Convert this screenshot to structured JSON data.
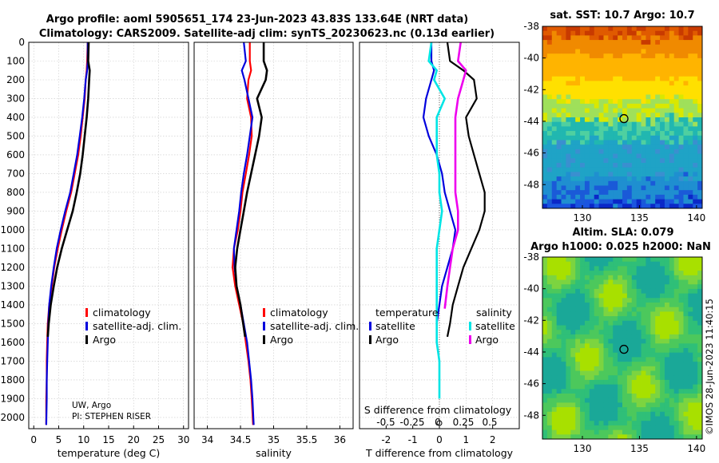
{
  "title": {
    "line1": "Argo profile: aoml 5905651_174 23-Jun-2023 43.83S 133.64E (NRT data)",
    "line2": "Climatology: CARS2009. Satellite-adj clim: synTS_20230623.nc (0.13d earlier)"
  },
  "credit": {
    "line1": "UW, Argo",
    "line2": "PI: STEPHEN RISER"
  },
  "watermark": "©IMOS 28-Jun-2023 11:40:15",
  "colors": {
    "climatology": "#ff0000",
    "satellite": "#0000dd",
    "argo": "#000000",
    "t_satellite": "#0000dd",
    "s_satellite": "#00e5e5",
    "s_argo": "#ee00ee",
    "map_marker": "#000000"
  },
  "chart_data": [
    {
      "type": "line",
      "id": "temperature",
      "xlabel": "temperature (deg C)",
      "ylabel": "",
      "xlim": [
        -1,
        31
      ],
      "ylim": [
        2060,
        0
      ],
      "xticks": [
        "0",
        "5",
        "10",
        "15",
        "20",
        "25",
        "30"
      ],
      "yticks": [
        "0",
        "100",
        "200",
        "300",
        "400",
        "500",
        "600",
        "700",
        "800",
        "900",
        "1000",
        "1100",
        "1200",
        "1300",
        "1400",
        "1500",
        "1600",
        "1700",
        "1800",
        "1900",
        "2000"
      ],
      "grid": true,
      "legend": [
        "climatology",
        "satellite-adj. clim.",
        "Argo"
      ],
      "legend_position": "lower-right",
      "series": [
        {
          "name": "climatology",
          "color": "#ff0000",
          "x": [
            10.8,
            10.7,
            10.6,
            10.4,
            10.2,
            9.8,
            9.4,
            8.9,
            8.2,
            7.5,
            6.5,
            5.6,
            4.8,
            4.1,
            3.6,
            3.1,
            2.8,
            2.7,
            2.6,
            2.6,
            2.5,
            2.5
          ],
          "y": [
            0,
            100,
            150,
            200,
            300,
            400,
            500,
            600,
            700,
            800,
            900,
            1000,
            1100,
            1200,
            1300,
            1400,
            1500,
            1600,
            1700,
            1800,
            1900,
            2040
          ]
        },
        {
          "name": "satellite-adj. clim.",
          "color": "#0000dd",
          "x": [
            10.8,
            10.8,
            10.7,
            10.4,
            10.1,
            9.7,
            9.2,
            8.7,
            8.0,
            7.3,
            6.3,
            5.4,
            4.6,
            4.0,
            3.5,
            3.1,
            2.9,
            2.8,
            2.7,
            2.6,
            2.6,
            2.5
          ],
          "y": [
            0,
            100,
            150,
            200,
            300,
            400,
            500,
            600,
            700,
            800,
            900,
            1000,
            1100,
            1200,
            1300,
            1400,
            1500,
            1600,
            1700,
            1800,
            1900,
            2040
          ]
        },
        {
          "name": "Argo",
          "color": "#000000",
          "x": [
            11.0,
            10.9,
            11.2,
            11.1,
            10.9,
            10.6,
            10.2,
            9.8,
            9.3,
            8.6,
            7.8,
            6.7,
            5.6,
            4.7,
            4.0,
            3.4,
            3.0,
            2.8
          ],
          "y": [
            0,
            100,
            150,
            200,
            300,
            400,
            500,
            600,
            700,
            800,
            900,
            1000,
            1100,
            1200,
            1300,
            1400,
            1500,
            1570
          ]
        }
      ]
    },
    {
      "type": "line",
      "id": "salinity",
      "xlabel": "salinity",
      "xlim": [
        33.8,
        36.2
      ],
      "ylim": [
        2060,
        0
      ],
      "xticks": [
        "34",
        "34.5",
        "35",
        "35.5",
        "36"
      ],
      "grid": true,
      "legend": [
        "climatology",
        "satellite-adj. clim.",
        "Argo"
      ],
      "legend_position": "lower-right",
      "series": [
        {
          "name": "climatology",
          "color": "#ff0000",
          "x": [
            34.64,
            34.64,
            34.66,
            34.62,
            34.6,
            34.66,
            34.67,
            34.63,
            34.58,
            34.53,
            34.5,
            34.46,
            34.4,
            34.38,
            34.42,
            34.48,
            34.54,
            34.58,
            34.62,
            34.65,
            34.67,
            34.69
          ],
          "y": [
            0,
            100,
            150,
            200,
            300,
            400,
            500,
            600,
            700,
            800,
            900,
            1000,
            1100,
            1200,
            1300,
            1400,
            1500,
            1600,
            1700,
            1800,
            1900,
            2040
          ]
        },
        {
          "name": "satellite-adj. clim.",
          "color": "#0000dd",
          "x": [
            34.55,
            34.58,
            34.52,
            34.56,
            34.62,
            34.68,
            34.64,
            34.6,
            34.55,
            34.51,
            34.48,
            34.44,
            34.4,
            34.41,
            34.44,
            34.5,
            34.55,
            34.6,
            34.63,
            34.66,
            34.68,
            34.7
          ],
          "y": [
            0,
            100,
            150,
            200,
            300,
            400,
            500,
            600,
            700,
            800,
            900,
            1000,
            1100,
            1200,
            1300,
            1400,
            1500,
            1600,
            1700,
            1800,
            1900,
            2040
          ]
        },
        {
          "name": "Argo",
          "color": "#000000",
          "x": [
            34.85,
            34.85,
            34.9,
            34.88,
            34.75,
            34.82,
            34.78,
            34.72,
            34.66,
            34.6,
            34.55,
            34.5,
            34.45,
            34.42,
            34.44,
            34.5,
            34.57
          ],
          "y": [
            0,
            100,
            150,
            200,
            300,
            400,
            500,
            600,
            700,
            800,
            900,
            1000,
            1100,
            1200,
            1300,
            1400,
            1570
          ]
        }
      ]
    },
    {
      "type": "line",
      "id": "difference",
      "xlabel": "T difference from climatology",
      "xlabel_top": "S difference from climatology",
      "xlim": [
        -3,
        3
      ],
      "ylim": [
        2060,
        0
      ],
      "xticks": [
        "-2",
        "-1",
        "0",
        "1",
        "2"
      ],
      "xticks_S": [
        "-0.5",
        "-0.25",
        "0",
        "0.25",
        "0.5"
      ],
      "grid": true,
      "legend_title_left": "temperature",
      "legend_title_right": "salinity",
      "legend_left": [
        "satellite",
        "Argo"
      ],
      "legend_right": [
        "satellite",
        "Argo"
      ],
      "series": [
        {
          "name": "temperature satellite",
          "color": "#0000dd",
          "x": [
            -0.3,
            -0.3,
            -0.2,
            -0.3,
            -0.5,
            -0.6,
            -0.4,
            -0.1,
            0.1,
            0.2,
            0.4,
            0.6,
            0.5,
            0.3,
            0.1,
            0.0,
            -0.1,
            -0.1
          ],
          "y": [
            0,
            100,
            150,
            200,
            300,
            400,
            500,
            600,
            700,
            800,
            900,
            1000,
            1100,
            1200,
            1300,
            1400,
            1500,
            1570
          ]
        },
        {
          "name": "temperature Argo",
          "color": "#000000",
          "x": [
            0.3,
            0.4,
            0.9,
            1.3,
            1.4,
            1.0,
            1.1,
            1.3,
            1.5,
            1.7,
            1.7,
            1.5,
            1.2,
            0.9,
            0.7,
            0.5,
            0.4,
            0.3
          ],
          "y": [
            0,
            100,
            150,
            200,
            300,
            400,
            500,
            600,
            700,
            800,
            900,
            1000,
            1100,
            1200,
            1300,
            1400,
            1500,
            1570
          ]
        },
        {
          "name": "salinity satellite",
          "color": "#00e5e5",
          "x": [
            -0.3,
            -0.4,
            -0.1,
            -0.2,
            0.2,
            -0.1,
            -0.1,
            -0.1,
            0.0,
            0.0,
            0.1,
            0.0,
            -0.1,
            -0.1,
            -0.1,
            -0.1,
            -0.1,
            -0.1,
            0.0,
            0.0,
            0.0
          ],
          "y": [
            0,
            100,
            150,
            200,
            300,
            400,
            500,
            600,
            700,
            800,
            900,
            1000,
            1100,
            1200,
            1300,
            1400,
            1500,
            1600,
            1700,
            1800,
            1900
          ]
        },
        {
          "name": "salinity Argo",
          "color": "#ee00ee",
          "x": [
            0.8,
            0.7,
            1.0,
            0.9,
            0.7,
            0.6,
            0.6,
            0.6,
            0.6,
            0.6,
            0.7,
            0.7,
            0.5,
            0.4,
            0.3,
            0.2
          ],
          "y": [
            0,
            100,
            150,
            200,
            300,
            400,
            500,
            600,
            700,
            800,
            900,
            1000,
            1100,
            1200,
            1300,
            1420
          ]
        }
      ]
    },
    {
      "type": "heatmap",
      "id": "sst_map",
      "title": "sat. SST: 10.7 Argo: 10.7",
      "xlim": [
        126.5,
        140.5
      ],
      "ylim": [
        -49.5,
        -38
      ],
      "xticks": [
        "130",
        "135",
        "140"
      ],
      "yticks": [
        "-38",
        "-40",
        "-42",
        "-44",
        "-46",
        "-48"
      ],
      "marker": {
        "lon": 133.64,
        "lat": -43.83
      }
    },
    {
      "type": "heatmap",
      "id": "sla_map",
      "title": "Altim. SLA: 0.079",
      "subtitle": "Argo h1000: 0.025 h2000: NaN",
      "xlim": [
        126.5,
        140.5
      ],
      "ylim": [
        -49.5,
        -38
      ],
      "xticks": [
        "130",
        "135",
        "140"
      ],
      "yticks": [
        "-38",
        "-40",
        "-42",
        "-44",
        "-46",
        "-48"
      ],
      "marker": {
        "lon": 133.64,
        "lat": -43.83
      }
    }
  ]
}
